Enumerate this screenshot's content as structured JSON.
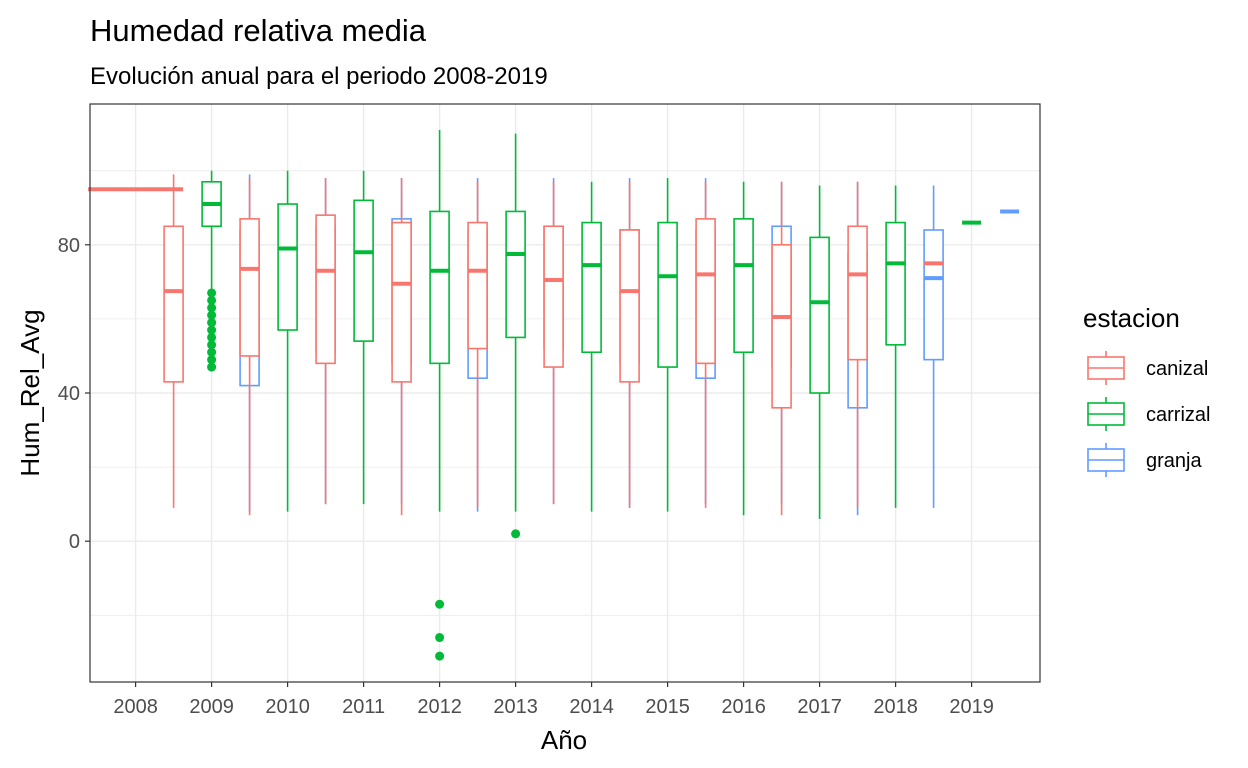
{
  "chart_data": {
    "type": "boxplot",
    "title": "Humedad relativa media",
    "subtitle": "Evolución anual para el periodo 2008-2019",
    "xlabel": "Año",
    "ylabel": "Hum_Rel_Avg",
    "categories": [
      "2008",
      "2009",
      "2010",
      "2011",
      "2012",
      "2013",
      "2014",
      "2015",
      "2016",
      "2017",
      "2018",
      "2019"
    ],
    "ylim": [
      -38,
      118
    ],
    "yticks": [
      0,
      40,
      80
    ],
    "ytick_labels": [
      "0",
      "40",
      "80"
    ],
    "grid": true,
    "legend": {
      "title": "estacion",
      "position": "right"
    },
    "colors": {
      "canizal": "#F8766D",
      "carrizal": "#00BA38",
      "granja": "#619CFF"
    },
    "series": [
      {
        "name": "canizal",
        "boxes": [
          {
            "x": "2008",
            "min": 95,
            "q1": 95,
            "median": 95,
            "q3": 95,
            "max": 95
          },
          {
            "x": "2009",
            "min": 9,
            "q1": 43,
            "median": 67.5,
            "q3": 85,
            "max": 99
          },
          {
            "x": "2010",
            "min": 7,
            "q1": 50,
            "median": 73.5,
            "q3": 87,
            "max": 98
          },
          {
            "x": "2011",
            "min": 10,
            "q1": 48,
            "median": 73,
            "q3": 88,
            "max": 98
          },
          {
            "x": "2012",
            "min": 7,
            "q1": 43,
            "median": 69.5,
            "q3": 86,
            "max": 98
          },
          {
            "x": "2013",
            "min": 9,
            "q1": 52,
            "median": 73,
            "q3": 86,
            "max": 97
          },
          {
            "x": "2014",
            "min": 10,
            "q1": 47,
            "median": 70.5,
            "q3": 85,
            "max": 97
          },
          {
            "x": "2015",
            "min": 9,
            "q1": 43,
            "median": 67.5,
            "q3": 84,
            "max": 97
          },
          {
            "x": "2016",
            "min": 9,
            "q1": 48,
            "median": 72,
            "q3": 87,
            "max": 97
          },
          {
            "x": "2017",
            "min": 7,
            "q1": 36,
            "median": 60.5,
            "q3": 80,
            "max": 97
          },
          {
            "x": "2018",
            "min": 9,
            "q1": 49,
            "median": 72,
            "q3": 85,
            "max": 97
          },
          {
            "x": "2019",
            "min": 75,
            "q1": 75,
            "median": 75,
            "q3": 75,
            "max": 75
          }
        ]
      },
      {
        "name": "carrizal",
        "boxes": [
          {
            "x": "2009",
            "min": 67,
            "q1": 85,
            "median": 91,
            "q3": 97,
            "max": 100,
            "outliers": [
              47,
              49,
              51,
              53,
              55,
              57,
              59,
              61,
              63,
              65,
              67
            ]
          },
          {
            "x": "2010",
            "min": 8,
            "q1": 57,
            "median": 79,
            "q3": 91,
            "max": 100
          },
          {
            "x": "2011",
            "min": 10,
            "q1": 54,
            "median": 78,
            "q3": 92,
            "max": 100
          },
          {
            "x": "2012",
            "min": 8,
            "q1": 48,
            "median": 73,
            "q3": 89,
            "max": 111,
            "outliers": [
              -17,
              -26,
              -31
            ]
          },
          {
            "x": "2013",
            "min": 8,
            "q1": 55,
            "median": 77.5,
            "q3": 89,
            "max": 110,
            "outliers": [
              2
            ]
          },
          {
            "x": "2014",
            "min": 8,
            "q1": 51,
            "median": 74.5,
            "q3": 86,
            "max": 97
          },
          {
            "x": "2015",
            "min": 8,
            "q1": 47,
            "median": 71.5,
            "q3": 86,
            "max": 98
          },
          {
            "x": "2016",
            "min": 7,
            "q1": 51,
            "median": 74.5,
            "q3": 87,
            "max": 97
          },
          {
            "x": "2017",
            "min": 6,
            "q1": 40,
            "median": 64.5,
            "q3": 82,
            "max": 96
          },
          {
            "x": "2018",
            "min": 9,
            "q1": 53,
            "median": 75,
            "q3": 86,
            "max": 96
          },
          {
            "x": "2019",
            "min": 86,
            "q1": 86,
            "median": 86,
            "q3": 86,
            "max": 86
          }
        ]
      },
      {
        "name": "granja",
        "boxes": [
          {
            "x": "2009",
            "min": 8,
            "q1": 42,
            "median": 66.5,
            "q3": 84,
            "max": 99
          },
          {
            "x": "2010",
            "min": 10,
            "q1": 51,
            "median": 72,
            "q3": 85,
            "max": 98
          },
          {
            "x": "2011",
            "min": 10,
            "q1": 48,
            "median": 71,
            "q3": 87,
            "max": 98
          },
          {
            "x": "2012",
            "min": 8,
            "q1": 44,
            "median": 68,
            "q3": 84,
            "max": 98
          },
          {
            "x": "2013",
            "min": 10,
            "q1": 52,
            "median": 72,
            "q3": 85,
            "max": 98
          },
          {
            "x": "2014",
            "min": 9,
            "q1": 48,
            "median": 70.5,
            "q3": 84,
            "max": 98
          },
          {
            "x": "2015",
            "min": 10,
            "q1": 44,
            "median": 67,
            "q3": 84,
            "max": 98
          },
          {
            "x": "2016",
            "min": 10,
            "q1": 47,
            "median": 70.5,
            "q3": 85,
            "max": 97
          },
          {
            "x": "2017",
            "min": 7,
            "q1": 36,
            "median": 59.5,
            "q3": 78,
            "max": 97
          },
          {
            "x": "2018",
            "min": 9,
            "q1": 49,
            "median": 71,
            "q3": 84,
            "max": 96
          },
          {
            "x": "2019",
            "min": 89,
            "q1": 89,
            "median": 89,
            "q3": 89,
            "max": 89
          }
        ]
      }
    ]
  }
}
